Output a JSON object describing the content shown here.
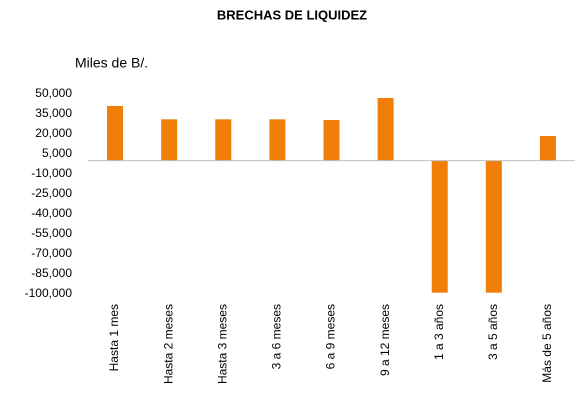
{
  "chart_data": {
    "type": "bar",
    "title": "BRECHAS DE LIQUIDEZ",
    "y_label": "Miles de B/.",
    "categories": [
      "Hasta 1 mes",
      "Hasta 2 meses",
      "Hasta 3 meses",
      "3 a 6 meses",
      "6 a 9 meses",
      "9 a 12 meses",
      "1 a 3 años",
      "3 a 5 años",
      "Más de 5 años"
    ],
    "values": [
      41000,
      31000,
      31000,
      31000,
      30500,
      47000,
      -99000,
      -99000,
      18500
    ],
    "color": "#f07f09",
    "ylim": [
      -100000,
      50000
    ],
    "yticks": [
      {
        "value": 50000,
        "label": "50,000"
      },
      {
        "value": 35000,
        "label": "35,000"
      },
      {
        "value": 20000,
        "label": "20,000"
      },
      {
        "value": 5000,
        "label": "5,000"
      },
      {
        "value": -10000,
        "label": "-10,000"
      },
      {
        "value": -25000,
        "label": "-25,000"
      },
      {
        "value": -40000,
        "label": "-40,000"
      },
      {
        "value": -55000,
        "label": "-55,000"
      },
      {
        "value": -70000,
        "label": "-70,000"
      },
      {
        "value": -85000,
        "label": "-85,000"
      },
      {
        "value": -100000,
        "label": "-100,000"
      }
    ],
    "grid": false
  }
}
